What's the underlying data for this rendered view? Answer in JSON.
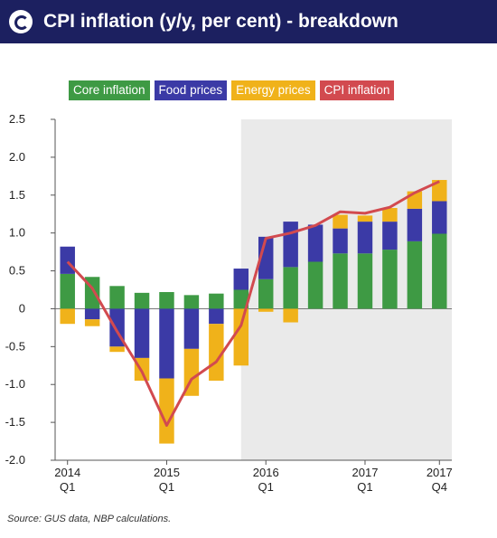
{
  "title": "CPI inflation (y/y, per cent) - breakdown",
  "source": "Source: GUS data, NBP calculations.",
  "colors": {
    "header_bg": "#1c2060",
    "core": "#3e9a44",
    "food": "#3b3aa6",
    "energy": "#f0b21a",
    "cpi": "#d24a4f",
    "shade": "#eaeaea"
  },
  "chart_data": {
    "type": "bar",
    "stacked": true,
    "title": "CPI inflation (y/y, per cent) - breakdown",
    "xlabel": "",
    "ylabel": "",
    "ylim": [
      -2.0,
      2.5
    ],
    "yticks": [
      "2.5",
      "2.0",
      "1.5",
      "1.0",
      "0.5",
      "0",
      "-0.5",
      "-1.0",
      "-1.5",
      "-2.0"
    ],
    "categories": [
      "2014 Q1",
      "2014 Q2",
      "2014 Q3",
      "2014 Q4",
      "2015 Q1",
      "2015 Q2",
      "2015 Q3",
      "2015 Q4",
      "2016 Q1",
      "2016 Q2",
      "2016 Q3",
      "2016 Q4",
      "2017 Q1",
      "2017 Q2",
      "2017 Q3",
      "2017 Q4"
    ],
    "x_tick_labels": [
      {
        "index": 0,
        "line1": "2014",
        "line2": "Q1"
      },
      {
        "index": 4,
        "line1": "2015",
        "line2": "Q1"
      },
      {
        "index": 8,
        "line1": "2016",
        "line2": "Q1"
      },
      {
        "index": 12,
        "line1": "2017",
        "line2": "Q1"
      },
      {
        "index": 15,
        "line1": "2017",
        "line2": "Q4"
      }
    ],
    "shaded_from_index": 7.5,
    "legend_position": "top",
    "series": [
      {
        "name": "Core inflation",
        "type": "bar",
        "color": "#3e9a44",
        "values": [
          0.46,
          0.42,
          0.3,
          0.21,
          0.22,
          0.18,
          0.2,
          0.25,
          0.39,
          0.55,
          0.62,
          0.73,
          0.73,
          0.78,
          0.89,
          0.99
        ]
      },
      {
        "name": "Food prices",
        "type": "bar",
        "color": "#3b3aa6",
        "values": [
          0.36,
          -0.14,
          -0.5,
          -0.65,
          -0.92,
          -0.53,
          -0.2,
          0.28,
          0.56,
          0.6,
          0.49,
          0.33,
          0.42,
          0.37,
          0.43,
          0.43
        ]
      },
      {
        "name": "Energy prices",
        "type": "bar",
        "color": "#f0b21a",
        "values": [
          -0.2,
          -0.09,
          -0.07,
          -0.3,
          -0.86,
          -0.62,
          -0.75,
          -0.75,
          -0.04,
          -0.18,
          0.0,
          0.18,
          0.08,
          0.18,
          0.23,
          0.28
        ]
      },
      {
        "name": "CPI inflation",
        "type": "line",
        "color": "#d24a4f",
        "values": [
          0.62,
          0.27,
          -0.3,
          -0.83,
          -1.54,
          -0.93,
          -0.7,
          -0.22,
          0.93,
          1.0,
          1.1,
          1.28,
          1.26,
          1.34,
          1.53,
          1.68
        ]
      }
    ]
  }
}
